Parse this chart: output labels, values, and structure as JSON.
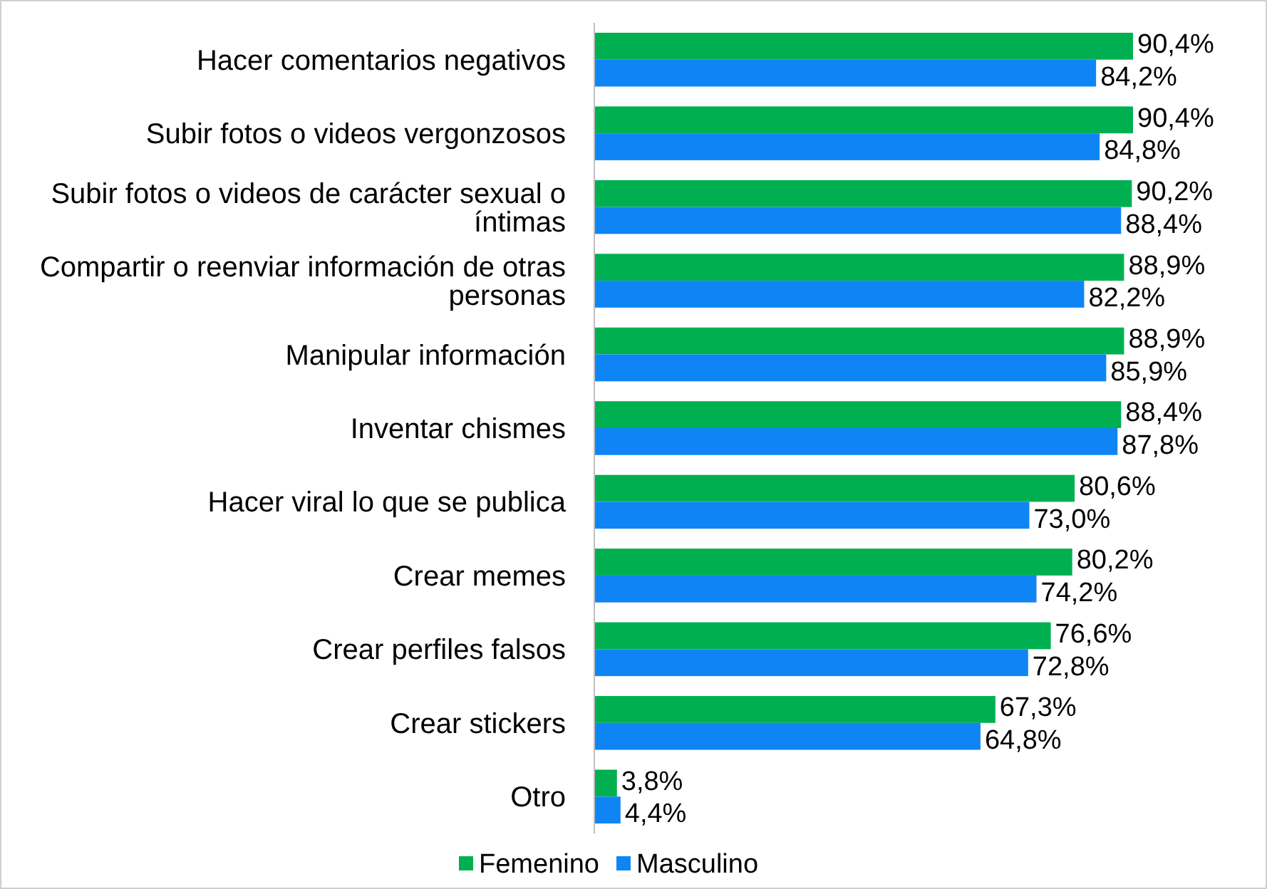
{
  "chart_data": {
    "type": "bar",
    "orientation": "horizontal",
    "categories": [
      "Hacer comentarios negativos",
      "Subir fotos o videos vergonzosos",
      "Subir fotos o videos de carácter sexual o íntimas",
      "Compartir o reenviar información de otras personas",
      "Manipular información",
      "Inventar chismes",
      "Hacer viral lo que se publica",
      "Crear memes",
      "Crear perfiles falsos",
      "Crear stickers",
      "Otro"
    ],
    "series": [
      {
        "name": "Femenino",
        "color": "#00b050",
        "values": [
          90.4,
          90.4,
          90.2,
          88.9,
          88.9,
          88.4,
          80.6,
          80.2,
          76.6,
          67.3,
          3.8
        ],
        "value_labels": [
          "90,4%",
          "90,4%",
          "90,2%",
          "88,9%",
          "88,9%",
          "88,4%",
          "80,6%",
          "80,2%",
          "76,6%",
          "67,3%",
          "3,8%"
        ]
      },
      {
        "name": "Masculino",
        "color": "#0f85f5",
        "values": [
          84.2,
          84.8,
          88.4,
          82.2,
          85.9,
          87.8,
          73.0,
          74.2,
          72.8,
          64.8,
          4.4
        ],
        "value_labels": [
          "84,2%",
          "84,8%",
          "88,4%",
          "82,2%",
          "85,9%",
          "87,8%",
          "73,0%",
          "74,2%",
          "72,8%",
          "64,8%",
          "4,4%"
        ]
      }
    ],
    "tick_labels": "y",
    "legend": "bottom"
  }
}
